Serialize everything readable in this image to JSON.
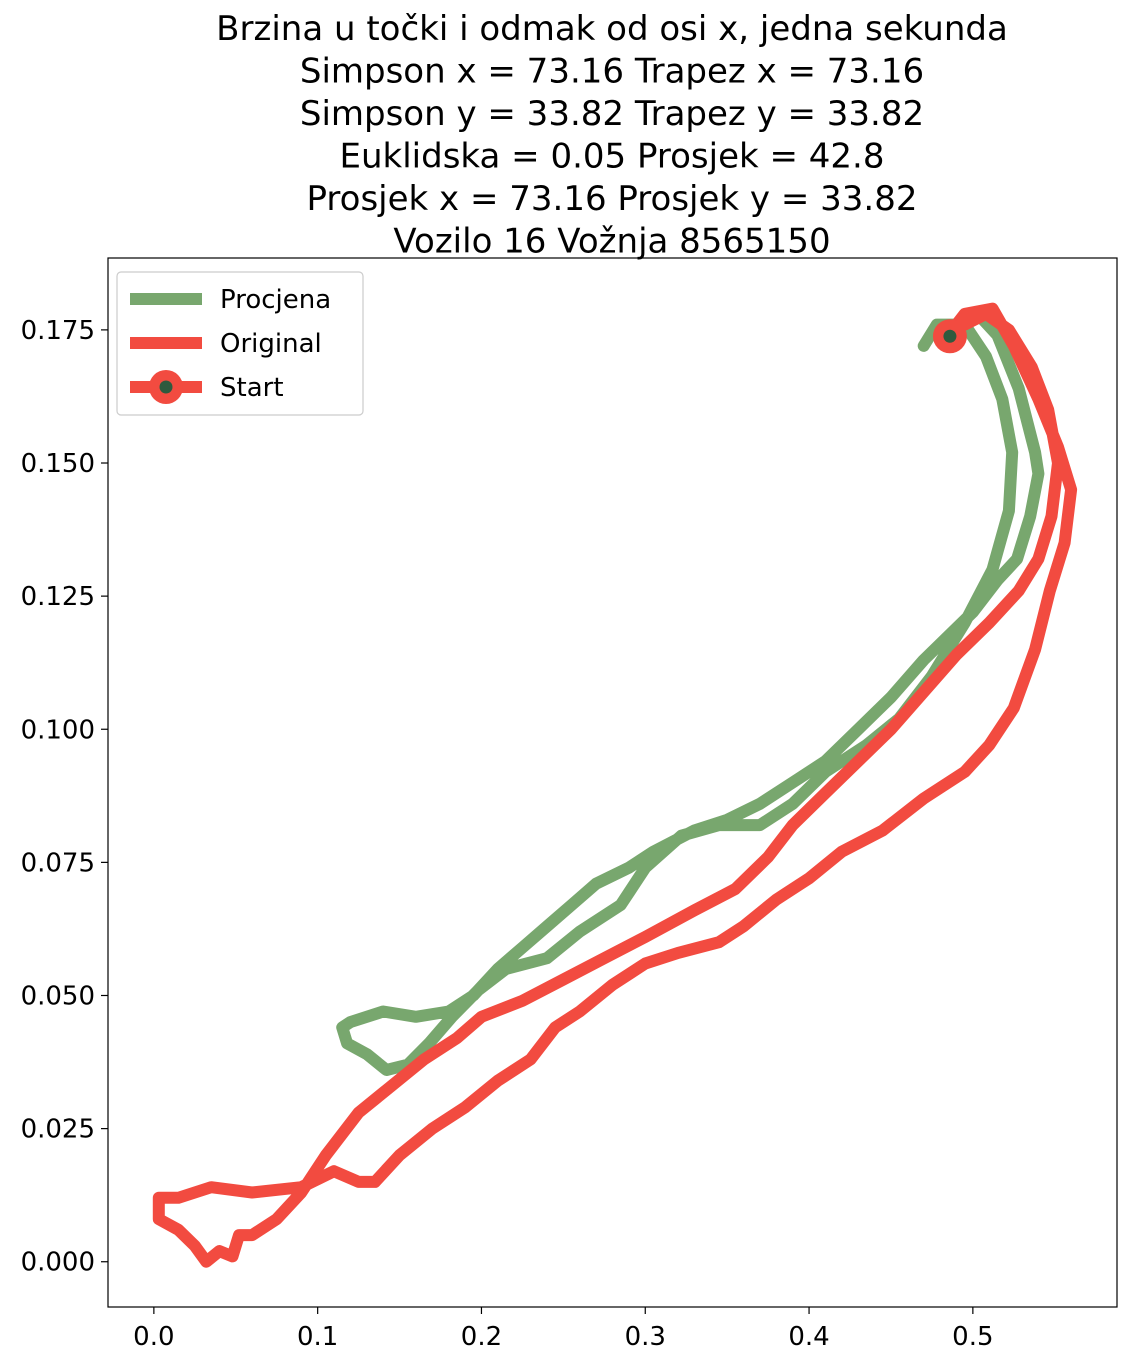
{
  "chart_data": {
    "type": "line",
    "title_lines": [
      "Brzina u točki i odmak od osi x, jedna sekunda",
      "Simpson x = 73.16 Trapez x = 73.16",
      "Simpson y = 33.82 Trapez y = 33.82",
      "Euklidska = 0.05 Prosjek = 42.8",
      "Prosjek x = 73.16 Prosjek y = 33.82",
      "Vozilo 16 Vožnja 8565150"
    ],
    "xlabel": "",
    "ylabel": "",
    "xlim": [
      -0.028,
      0.588
    ],
    "ylim": [
      -0.0085,
      0.1885
    ],
    "x_ticks": [
      {
        "value": 0.0,
        "label": "0.0"
      },
      {
        "value": 0.1,
        "label": "0.1"
      },
      {
        "value": 0.2,
        "label": "0.2"
      },
      {
        "value": 0.3,
        "label": "0.3"
      },
      {
        "value": 0.4,
        "label": "0.4"
      },
      {
        "value": 0.5,
        "label": "0.5"
      }
    ],
    "y_ticks": [
      {
        "value": 0.0,
        "label": "0.000"
      },
      {
        "value": 0.025,
        "label": "0.025"
      },
      {
        "value": 0.05,
        "label": "0.050"
      },
      {
        "value": 0.075,
        "label": "0.075"
      },
      {
        "value": 0.1,
        "label": "0.100"
      },
      {
        "value": 0.125,
        "label": "0.125"
      },
      {
        "value": 0.15,
        "label": "0.150"
      },
      {
        "value": 0.175,
        "label": "0.175"
      }
    ],
    "grid": false,
    "legend_position": "top-left",
    "series": [
      {
        "name": "Procjena",
        "color": "#78a76e",
        "points": [
          [
            0.47,
            0.172
          ],
          [
            0.478,
            0.176
          ],
          [
            0.49,
            0.176
          ],
          [
            0.503,
            0.178
          ],
          [
            0.515,
            0.174
          ],
          [
            0.528,
            0.164
          ],
          [
            0.538,
            0.152
          ],
          [
            0.54,
            0.148
          ],
          [
            0.535,
            0.14
          ],
          [
            0.527,
            0.132
          ],
          [
            0.515,
            0.128
          ],
          [
            0.5,
            0.122
          ],
          [
            0.47,
            0.113
          ],
          [
            0.45,
            0.106
          ],
          [
            0.43,
            0.1
          ],
          [
            0.41,
            0.094
          ],
          [
            0.39,
            0.09
          ],
          [
            0.37,
            0.086
          ],
          [
            0.35,
            0.083
          ],
          [
            0.33,
            0.081
          ],
          [
            0.305,
            0.077
          ],
          [
            0.29,
            0.074
          ],
          [
            0.27,
            0.071
          ],
          [
            0.255,
            0.067
          ],
          [
            0.24,
            0.063
          ],
          [
            0.225,
            0.059
          ],
          [
            0.21,
            0.055
          ],
          [
            0.195,
            0.05
          ],
          [
            0.18,
            0.047
          ],
          [
            0.16,
            0.046
          ],
          [
            0.14,
            0.047
          ],
          [
            0.12,
            0.045
          ],
          [
            0.115,
            0.044
          ],
          [
            0.118,
            0.041
          ],
          [
            0.13,
            0.039
          ],
          [
            0.142,
            0.036
          ],
          [
            0.155,
            0.037
          ],
          [
            0.168,
            0.041
          ],
          [
            0.182,
            0.046
          ],
          [
            0.198,
            0.051
          ],
          [
            0.215,
            0.055
          ],
          [
            0.24,
            0.057
          ],
          [
            0.26,
            0.062
          ],
          [
            0.285,
            0.067
          ],
          [
            0.3,
            0.074
          ],
          [
            0.322,
            0.08
          ],
          [
            0.345,
            0.082
          ],
          [
            0.37,
            0.082
          ],
          [
            0.39,
            0.086
          ],
          [
            0.41,
            0.092
          ],
          [
            0.435,
            0.097
          ],
          [
            0.455,
            0.102
          ],
          [
            0.475,
            0.11
          ],
          [
            0.495,
            0.12
          ],
          [
            0.512,
            0.13
          ],
          [
            0.522,
            0.141
          ],
          [
            0.524,
            0.152
          ],
          [
            0.518,
            0.162
          ],
          [
            0.508,
            0.17
          ],
          [
            0.495,
            0.176
          ],
          [
            0.485,
            0.174
          ]
        ]
      },
      {
        "name": "Original",
        "color": "#f24b40",
        "points": [
          [
            0.485,
            0.174
          ],
          [
            0.495,
            0.178
          ],
          [
            0.512,
            0.179
          ],
          [
            0.525,
            0.172
          ],
          [
            0.54,
            0.162
          ],
          [
            0.552,
            0.153
          ],
          [
            0.56,
            0.145
          ],
          [
            0.556,
            0.135
          ],
          [
            0.547,
            0.126
          ],
          [
            0.538,
            0.115
          ],
          [
            0.525,
            0.104
          ],
          [
            0.51,
            0.097
          ],
          [
            0.495,
            0.092
          ],
          [
            0.47,
            0.087
          ],
          [
            0.445,
            0.081
          ],
          [
            0.42,
            0.077
          ],
          [
            0.4,
            0.072
          ],
          [
            0.38,
            0.068
          ],
          [
            0.36,
            0.063
          ],
          [
            0.345,
            0.06
          ],
          [
            0.32,
            0.058
          ],
          [
            0.3,
            0.056
          ],
          [
            0.28,
            0.052
          ],
          [
            0.26,
            0.047
          ],
          [
            0.245,
            0.044
          ],
          [
            0.23,
            0.038
          ],
          [
            0.21,
            0.034
          ],
          [
            0.19,
            0.029
          ],
          [
            0.17,
            0.025
          ],
          [
            0.15,
            0.02
          ],
          [
            0.135,
            0.015
          ],
          [
            0.125,
            0.015
          ],
          [
            0.11,
            0.017
          ],
          [
            0.09,
            0.014
          ],
          [
            0.06,
            0.013
          ],
          [
            0.035,
            0.014
          ],
          [
            0.015,
            0.012
          ],
          [
            0.003,
            0.012
          ],
          [
            0.003,
            0.008
          ],
          [
            0.015,
            0.006
          ],
          [
            0.025,
            0.003
          ],
          [
            0.032,
            0.0
          ],
          [
            0.04,
            0.002
          ],
          [
            0.048,
            0.001
          ],
          [
            0.052,
            0.005
          ],
          [
            0.06,
            0.005
          ],
          [
            0.075,
            0.008
          ],
          [
            0.09,
            0.013
          ],
          [
            0.105,
            0.02
          ],
          [
            0.125,
            0.028
          ],
          [
            0.145,
            0.033
          ],
          [
            0.165,
            0.038
          ],
          [
            0.185,
            0.042
          ],
          [
            0.2,
            0.046
          ],
          [
            0.225,
            0.049
          ],
          [
            0.25,
            0.053
          ],
          [
            0.275,
            0.057
          ],
          [
            0.3,
            0.061
          ],
          [
            0.33,
            0.066
          ],
          [
            0.355,
            0.07
          ],
          [
            0.375,
            0.076
          ],
          [
            0.39,
            0.082
          ],
          [
            0.41,
            0.088
          ],
          [
            0.43,
            0.094
          ],
          [
            0.45,
            0.1
          ],
          [
            0.47,
            0.107
          ],
          [
            0.49,
            0.114
          ],
          [
            0.51,
            0.12
          ],
          [
            0.528,
            0.126
          ],
          [
            0.54,
            0.132
          ],
          [
            0.548,
            0.14
          ],
          [
            0.552,
            0.15
          ],
          [
            0.546,
            0.16
          ],
          [
            0.536,
            0.168
          ],
          [
            0.522,
            0.175
          ],
          [
            0.508,
            0.178
          ],
          [
            0.495,
            0.176
          ]
        ]
      }
    ],
    "start": {
      "name": "Start",
      "x": 0.486,
      "y": 0.1738,
      "ring_color": "#f24b40",
      "dot_color": "#2e5a3e"
    },
    "legend": [
      {
        "label": "Procjena",
        "color": "#78a76e",
        "marker": false
      },
      {
        "label": "Original",
        "color": "#f24b40",
        "marker": false
      },
      {
        "label": "Start",
        "color": "#f24b40",
        "marker": true,
        "dot_color": "#2e5a3e"
      }
    ]
  }
}
